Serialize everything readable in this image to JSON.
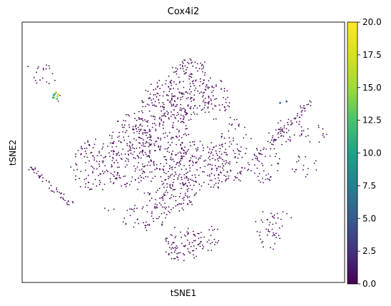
{
  "chart_data": {
    "type": "scatter",
    "title": "Cox4i2",
    "xlabel": "tSNE1",
    "ylabel": "tSNE2",
    "x_ticks": "none",
    "y_ticks": "none",
    "grid": false,
    "colormap": "viridis",
    "colorbar": {
      "min": 0.0,
      "max": 20.0,
      "ticks": [
        "0.0",
        "2.5",
        "5.0",
        "7.5",
        "10.0",
        "12.5",
        "15.0",
        "17.5",
        "20.0"
      ]
    },
    "point_color_default": "#440154",
    "clusters": [
      {
        "shape": "blob",
        "cx": 0.06,
        "cy": 0.2,
        "rx": 0.05,
        "ry": 0.045,
        "density": 0.35
      },
      {
        "shape": "blob",
        "cx": 0.23,
        "cy": 0.55,
        "rx": 0.08,
        "ry": 0.1,
        "density": 0.6
      },
      {
        "shape": "blob",
        "cx": 0.34,
        "cy": 0.5,
        "rx": 0.07,
        "ry": 0.15,
        "density": 0.8
      },
      {
        "shape": "blob",
        "cx": 0.44,
        "cy": 0.4,
        "rx": 0.08,
        "ry": 0.18,
        "density": 0.85
      },
      {
        "shape": "blob",
        "cx": 0.52,
        "cy": 0.25,
        "rx": 0.07,
        "ry": 0.12,
        "density": 0.8
      },
      {
        "shape": "blob",
        "cx": 0.56,
        "cy": 0.55,
        "rx": 0.09,
        "ry": 0.1,
        "density": 0.85
      },
      {
        "shape": "blob",
        "cx": 0.46,
        "cy": 0.65,
        "rx": 0.08,
        "ry": 0.08,
        "density": 0.8
      },
      {
        "shape": "blob",
        "cx": 0.38,
        "cy": 0.75,
        "rx": 0.07,
        "ry": 0.05,
        "density": 0.55
      },
      {
        "shape": "blob",
        "cx": 0.6,
        "cy": 0.3,
        "rx": 0.05,
        "ry": 0.08,
        "density": 0.55
      },
      {
        "shape": "blob",
        "cx": 0.66,
        "cy": 0.45,
        "rx": 0.05,
        "ry": 0.08,
        "density": 0.5
      },
      {
        "shape": "blob",
        "cx": 0.75,
        "cy": 0.55,
        "rx": 0.05,
        "ry": 0.07,
        "density": 0.45
      },
      {
        "shape": "blob",
        "cx": 0.82,
        "cy": 0.42,
        "rx": 0.06,
        "ry": 0.05,
        "density": 0.45
      },
      {
        "shape": "blob",
        "cx": 0.88,
        "cy": 0.56,
        "rx": 0.04,
        "ry": 0.05,
        "density": 0.35
      },
      {
        "shape": "blob",
        "cx": 0.91,
        "cy": 0.43,
        "rx": 0.035,
        "ry": 0.04,
        "density": 0.35
      },
      {
        "shape": "blob",
        "cx": 0.8,
        "cy": 0.75,
        "rx": 0.035,
        "ry": 0.04,
        "density": 0.35
      },
      {
        "shape": "blob",
        "cx": 0.76,
        "cy": 0.8,
        "rx": 0.04,
        "ry": 0.08,
        "density": 0.45
      },
      {
        "shape": "blob",
        "cx": 0.5,
        "cy": 0.85,
        "rx": 0.06,
        "ry": 0.07,
        "density": 0.85
      },
      {
        "shape": "blob",
        "cx": 0.58,
        "cy": 0.83,
        "rx": 0.04,
        "ry": 0.05,
        "density": 0.5
      },
      {
        "shape": "blob",
        "cx": 0.43,
        "cy": 0.77,
        "rx": 0.015,
        "ry": 0.015,
        "density": 0.3
      },
      {
        "shape": "blob",
        "cx": 0.27,
        "cy": 0.72,
        "rx": 0.02,
        "ry": 0.02,
        "density": 0.3
      },
      {
        "shape": "blob",
        "cx": 0.12,
        "cy": 0.3,
        "rx": 0.02,
        "ry": 0.02,
        "density": 0.25
      },
      {
        "shape": "stripe",
        "x0": 0.03,
        "y0": 0.56,
        "x1": 0.15,
        "y1": 0.7,
        "density": 0.3
      },
      {
        "shape": "stripe",
        "x0": 0.66,
        "y0": 0.6,
        "x1": 0.9,
        "y1": 0.3,
        "density": 0.25
      }
    ],
    "highlighted_points": [
      {
        "x": 0.098,
        "y": 0.28,
        "value": 10
      },
      {
        "x": 0.1,
        "y": 0.29,
        "value": 15
      },
      {
        "x": 0.102,
        "y": 0.275,
        "value": 12
      },
      {
        "x": 0.11,
        "y": 0.285,
        "value": 16
      },
      {
        "x": 0.105,
        "y": 0.27,
        "value": 14
      },
      {
        "x": 0.108,
        "y": 0.295,
        "value": 13
      },
      {
        "x": 0.096,
        "y": 0.29,
        "value": 11
      },
      {
        "x": 0.112,
        "y": 0.278,
        "value": 17
      },
      {
        "x": 0.8,
        "y": 0.31,
        "value": 8
      },
      {
        "x": 0.82,
        "y": 0.305,
        "value": 6
      }
    ]
  }
}
